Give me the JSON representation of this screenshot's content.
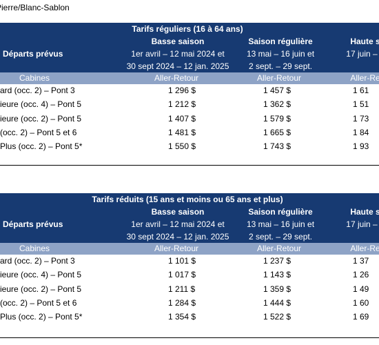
{
  "title": "Pierre/Blanc-Sablon",
  "tables": [
    {
      "heading": "Tarifs réguliers (16 à 64 ans)",
      "departures": "Départs prévus",
      "seasons": [
        {
          "name": "Basse saison",
          "dates": [
            "1er avril – 12 mai 2024 et",
            "30 sept 2024 – 12 jan. 2025"
          ]
        },
        {
          "name": "Saison régulière",
          "dates": [
            "13 mai – 16 juin et",
            "2 sept. – 29 sept."
          ]
        },
        {
          "name": "Haute s",
          "dates": [
            "17 juin – 1"
          ]
        }
      ],
      "cabins_label": "Cabines",
      "price_labels": [
        "Aller-Retour",
        "Aller-Retour",
        "Aller-Re"
      ],
      "rows": [
        {
          "cabin": "ard (occ. 2) – Pont 3",
          "prices": [
            "1 296 $",
            "1 457 $",
            "1 61"
          ]
        },
        {
          "cabin": "ieure (occ. 4) – Pont 5",
          "prices": [
            "1 212 $",
            "1 362 $",
            "1 51"
          ]
        },
        {
          "cabin": "ieure (occ. 2) – Pont 5",
          "prices": [
            "1 407 $",
            "1 579 $",
            "1 73"
          ]
        },
        {
          "cabin": "(occ. 2) – Pont 5 et 6",
          "prices": [
            "1 481 $",
            "1 665 $",
            "1 84"
          ]
        },
        {
          "cabin": "Plus (occ. 2) – Pont 5*",
          "prices": [
            "1 550 $",
            "1 743 $",
            "1 93"
          ]
        }
      ]
    },
    {
      "heading": "Tarifs réduits (15 ans et moins ou 65 ans et plus)",
      "departures": "Départs prévus",
      "seasons": [
        {
          "name": "Basse saison",
          "dates": [
            "1er avril – 12 mai 2024 et",
            "30 sept 2024 – 12 jan. 2025"
          ]
        },
        {
          "name": "Saison régulière",
          "dates": [
            "13 mai – 16 juin et",
            "2 sept. – 29 sept."
          ]
        },
        {
          "name": "Haute s",
          "dates": [
            "17 juin – 1"
          ]
        }
      ],
      "cabins_label": "Cabines",
      "price_labels": [
        "Aller-Retour",
        "Aller-Retour",
        "Aller-Re"
      ],
      "rows": [
        {
          "cabin": "ard (occ. 2) – Pont 3",
          "prices": [
            "1 101 $",
            "1 237 $",
            "1 37"
          ]
        },
        {
          "cabin": "ieure (occ. 4) – Pont 5",
          "prices": [
            "1 017 $",
            "1 143 $",
            "1 26"
          ]
        },
        {
          "cabin": "ieure (occ. 2) – Pont 5",
          "prices": [
            "1 211 $",
            "1 359 $",
            "1 49"
          ]
        },
        {
          "cabin": "(occ. 2) – Pont 5 et 6",
          "prices": [
            "1 284 $",
            "1 444 $",
            "1 60"
          ]
        },
        {
          "cabin": "Plus (occ. 2) – Pont 5*",
          "prices": [
            "1 354 $",
            "1 522 $",
            "1 69"
          ]
        }
      ]
    }
  ]
}
